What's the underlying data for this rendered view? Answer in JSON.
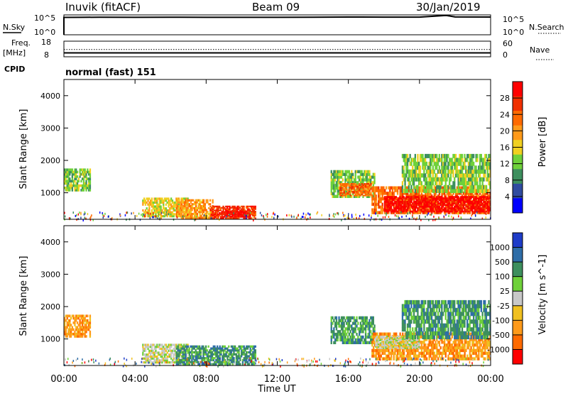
{
  "header": {
    "station": "Inuvik (fitACF)",
    "beam": "Beam 09",
    "date": "30/Jan/2019"
  },
  "colors": {
    "power": [
      "#0000ff",
      "#2f4ba0",
      "#3d8f5e",
      "#6fd13a",
      "#f0d020",
      "#ff9a1a",
      "#ff6a00",
      "#f03000",
      "#ff0000"
    ],
    "velocity": [
      "#ff0000",
      "#ff6a00",
      "#ff9a1a",
      "#f0c020",
      "#c8c8c8",
      "#6fd13a",
      "#3d8f5e",
      "#2f6ea8",
      "#1e3cc8"
    ]
  },
  "chart_data": [
    {
      "type": "line",
      "panel": "N.Sky / N.Search",
      "left_label": "N.Sky",
      "right_label": "N.Search",
      "left_ticks": [
        "10^5",
        "10^0"
      ],
      "right_ticks": [
        "10^5",
        "10^0"
      ],
      "series": [
        {
          "name": "N.Sky",
          "x": [
            0,
            1,
            2,
            4,
            6,
            8,
            10,
            12,
            14,
            16,
            18,
            20,
            21.5,
            22,
            24
          ],
          "values": [
            180000,
            190000,
            200000,
            190000,
            200000,
            190000,
            195000,
            190000,
            200000,
            230000,
            210000,
            220000,
            700000,
            240000,
            230000
          ]
        }
      ],
      "ylim": [
        1,
        1000000
      ],
      "log": true
    },
    {
      "type": "line",
      "panel": "Freq / Nave",
      "left_label": "Freq.",
      "left_unit": "[MHz]",
      "right_label": "Nave",
      "left_ticks": [
        "18",
        "8"
      ],
      "right_ticks": [
        "60",
        "0"
      ],
      "series": [
        {
          "name": "Freq.",
          "x": [
            0,
            24
          ],
          "values": [
            10.5,
            10.5
          ]
        },
        {
          "name": "Nave",
          "x": [
            0,
            24
          ],
          "values": [
            28,
            28
          ]
        }
      ],
      "ylim": [
        8,
        18
      ],
      "cpid_label": "CPID",
      "cpid_text": "normal (fast) 151"
    },
    {
      "type": "heatmap",
      "panel": "Power",
      "ylabel": "Slant Range [km]",
      "ylim": [
        180,
        4500
      ],
      "y_ticks": [
        "4000",
        "3000",
        "2000",
        "1000"
      ],
      "colorbar_label": "Power [dB]",
      "colorbar_ticks": [
        "28",
        "24",
        "20",
        "16",
        "12",
        "8",
        "4"
      ],
      "regions": [
        {
          "t0": 0.0,
          "t1": 1.5,
          "r0": 1050,
          "r1": 1750,
          "level": 3
        },
        {
          "t0": 4.4,
          "t1": 7.0,
          "r0": 250,
          "r1": 850,
          "level": 4
        },
        {
          "t0": 6.3,
          "t1": 8.4,
          "r0": 200,
          "r1": 800,
          "level": 5
        },
        {
          "t0": 8.2,
          "t1": 10.8,
          "r0": 200,
          "r1": 600,
          "level": 7
        },
        {
          "t0": 9.0,
          "t1": 10.5,
          "r0": 250,
          "r1": 450,
          "level": 8
        },
        {
          "t0": 15.0,
          "t1": 17.5,
          "r0": 850,
          "r1": 1700,
          "level": 3
        },
        {
          "t0": 15.5,
          "t1": 17.3,
          "r0": 900,
          "r1": 1300,
          "level": 6
        },
        {
          "t0": 17.3,
          "t1": 24.0,
          "r0": 350,
          "r1": 1200,
          "level": 6
        },
        {
          "t0": 18.0,
          "t1": 24.0,
          "r0": 400,
          "r1": 900,
          "level": 8
        },
        {
          "t0": 19.0,
          "t1": 24.0,
          "r0": 1000,
          "r1": 2200,
          "level": 3
        }
      ]
    },
    {
      "type": "heatmap",
      "panel": "Velocity",
      "ylabel": "Slant Range [km]",
      "ylim": [
        180,
        4500
      ],
      "y_ticks": [
        "4000",
        "3000",
        "2000",
        "1000"
      ],
      "colorbar_label": "Velocity [m s^-1]",
      "colorbar_ticks": [
        "1000",
        "500",
        "100",
        "25",
        "-25",
        "-100",
        "-500",
        "-1000"
      ],
      "x_ticks": [
        "00:00",
        "04:00",
        "08:00",
        "12:00",
        "16:00",
        "20:00",
        "00:00"
      ],
      "xlabel": "Time UT",
      "regions": [
        {
          "t0": 0.0,
          "t1": 1.5,
          "r0": 1050,
          "r1": 1750,
          "level": 2
        },
        {
          "t0": 4.4,
          "t1": 7.0,
          "r0": 250,
          "r1": 850,
          "level": 4
        },
        {
          "t0": 6.3,
          "t1": 10.8,
          "r0": 200,
          "r1": 800,
          "level": 6
        },
        {
          "t0": 15.0,
          "t1": 17.5,
          "r0": 850,
          "r1": 1700,
          "level": 6
        },
        {
          "t0": 17.3,
          "t1": 24.0,
          "r0": 350,
          "r1": 1200,
          "level": 2
        },
        {
          "t0": 17.5,
          "t1": 20.0,
          "r0": 700,
          "r1": 1100,
          "level": 4
        },
        {
          "t0": 19.0,
          "t1": 24.0,
          "r0": 1000,
          "r1": 2200,
          "level": 6
        }
      ]
    }
  ]
}
